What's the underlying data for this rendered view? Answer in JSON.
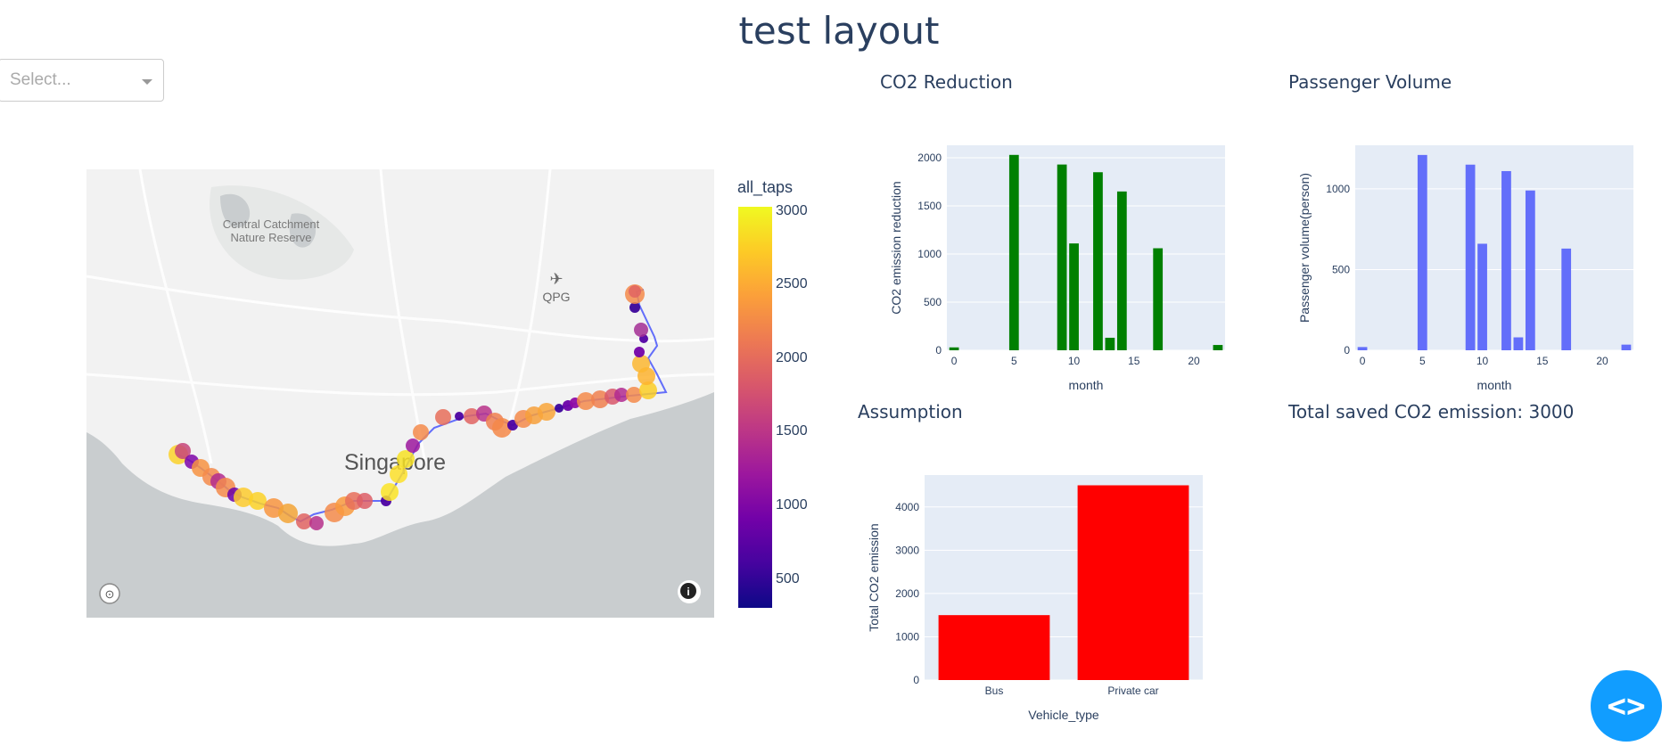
{
  "page": {
    "title": "test layout"
  },
  "dropdown": {
    "placeholder": "Select..."
  },
  "map": {
    "colorbar": {
      "title": "all_taps",
      "ticks": [
        "3000",
        "2500",
        "2000",
        "1500",
        "1000",
        "500"
      ]
    },
    "labels": {
      "reserve_line1": "Central Catchment",
      "reserve_line2": "Nature Reserve",
      "airport": "QPG",
      "city": "Singapore"
    },
    "colors": {
      "water": "#c9cdcf",
      "land": "#f2f2f2",
      "route": "#636efa"
    }
  },
  "sections": {
    "co2_reduction": "CO2 Reduction",
    "passenger_volume": "Passenger Volume",
    "assumption": "Assumption",
    "total_saved": "Total saved CO2 emission: 3000"
  },
  "chart_data": [
    {
      "id": "co2_reduction",
      "type": "bar",
      "xlabel": "month",
      "ylabel": "CO2 emission reduction",
      "x_ticks": [
        0,
        5,
        10,
        15,
        20
      ],
      "y_ticks": [
        0,
        500,
        1000,
        1500,
        2000
      ],
      "xlim": [
        -0.6,
        22.6
      ],
      "ylim": [
        0,
        2130
      ],
      "x": [
        0,
        5,
        9,
        10,
        12,
        13,
        14,
        17,
        22
      ],
      "values": [
        30,
        2030,
        1930,
        1110,
        1850,
        130,
        1650,
        1060,
        55
      ],
      "color": "#008000"
    },
    {
      "id": "passenger_volume",
      "type": "bar",
      "xlabel": "month",
      "ylabel": "Passenger volume(person)",
      "x_ticks": [
        0,
        5,
        10,
        15,
        20
      ],
      "y_ticks": [
        0,
        500,
        1000
      ],
      "xlim": [
        -0.6,
        22.6
      ],
      "ylim": [
        0,
        1270
      ],
      "x": [
        0,
        5,
        9,
        10,
        12,
        13,
        14,
        17,
        22
      ],
      "values": [
        20,
        1210,
        1150,
        660,
        1110,
        80,
        990,
        630,
        35
      ],
      "color": "#636efa"
    },
    {
      "id": "assumption",
      "type": "bar",
      "xlabel": "Vehicle_type",
      "ylabel": "Total CO2 emission",
      "categories": [
        "Bus",
        "Private car"
      ],
      "values": [
        1500,
        4500
      ],
      "y_ticks": [
        0,
        1000,
        2000,
        3000,
        4000
      ],
      "ylim": [
        0,
        4737
      ],
      "color": "#ff0000"
    }
  ]
}
